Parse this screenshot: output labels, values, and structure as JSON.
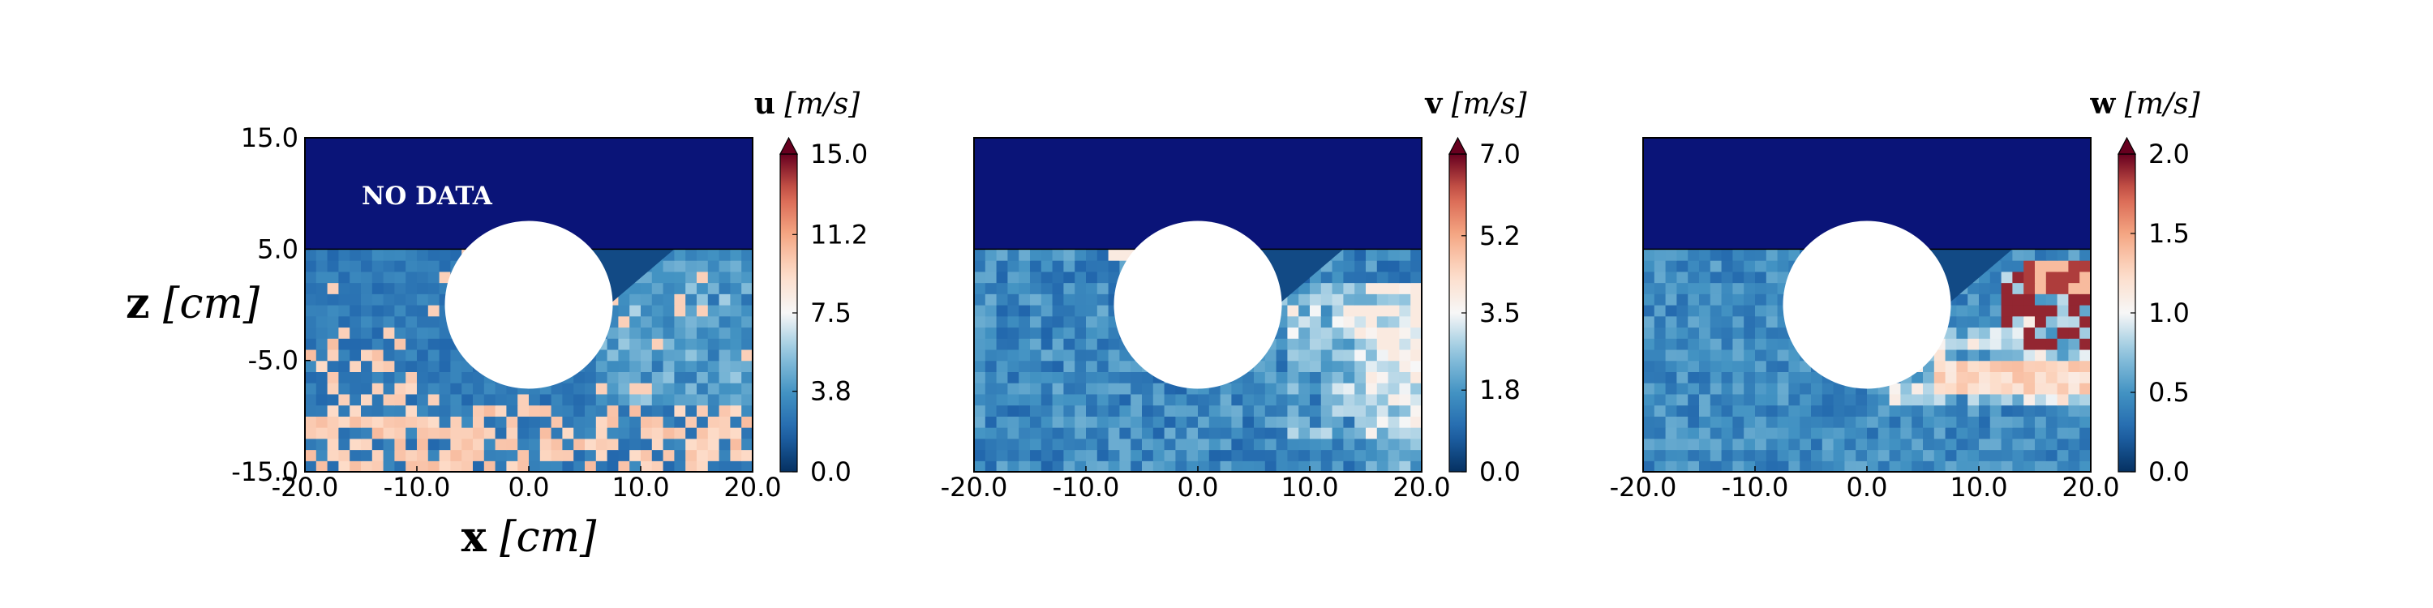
{
  "chart_data": [
    {
      "type": "heatmap",
      "colorbar": {
        "variable": "u",
        "unit": "[m/s]",
        "ticks": [
          "0.0",
          "3.8",
          "7.5",
          "11.2",
          "15.0"
        ],
        "min": 0,
        "max": 15,
        "extend": "max"
      },
      "annotation": "NO DATA",
      "xlabel_var": "x",
      "xlabel_unit": "[cm]",
      "ylabel_var": "z",
      "ylabel_unit": "[cm]",
      "xticks": [
        "-20.0",
        "-10.0",
        "0.0",
        "10.0",
        "20.0"
      ],
      "yticks": [
        "15.0",
        "5.0",
        "-5.0",
        "-15.0"
      ],
      "xlim": [
        -20,
        20
      ],
      "ylim": [
        -15,
        15
      ],
      "no_data_region": {
        "z_min": 5,
        "z_max": 15
      },
      "cylinder": {
        "x_center": 0,
        "z_center": 0,
        "radius": 7.5
      },
      "colormap": "RdBu_r",
      "grid": {
        "nx": 40,
        "nz": 20
      }
    },
    {
      "type": "heatmap",
      "colorbar": {
        "variable": "v",
        "unit": "[m/s]",
        "ticks": [
          "0.0",
          "1.8",
          "3.5",
          "5.2",
          "7.0"
        ],
        "min": 0,
        "max": 7,
        "extend": "max"
      },
      "xticks": [
        "-20.0",
        "-10.0",
        "0.0",
        "10.0",
        "20.0"
      ],
      "xlim": [
        -20,
        20
      ],
      "ylim": [
        -15,
        15
      ],
      "no_data_region": {
        "z_min": 5,
        "z_max": 15
      },
      "cylinder": {
        "x_center": 0,
        "z_center": 0,
        "radius": 7.5
      },
      "colormap": "RdBu_r",
      "grid": {
        "nx": 40,
        "nz": 20
      }
    },
    {
      "type": "heatmap",
      "colorbar": {
        "variable": "w",
        "unit": "[m/s]",
        "ticks": [
          "0.0",
          "0.5",
          "1.0",
          "1.5",
          "2.0"
        ],
        "min": 0,
        "max": 2,
        "extend": "max"
      },
      "xticks": [
        "-20.0",
        "-10.0",
        "0.0",
        "10.0",
        "20.0"
      ],
      "xlim": [
        -20,
        20
      ],
      "ylim": [
        -15,
        15
      ],
      "no_data_region": {
        "z_min": 5,
        "z_max": 15
      },
      "cylinder": {
        "x_center": 0,
        "z_center": 0,
        "radius": 7.5
      },
      "colormap": "RdBu_r",
      "grid": {
        "nx": 40,
        "nz": 20
      }
    }
  ],
  "colors": {
    "no_data": "#0a1478",
    "cylinder": "#ffffff"
  }
}
